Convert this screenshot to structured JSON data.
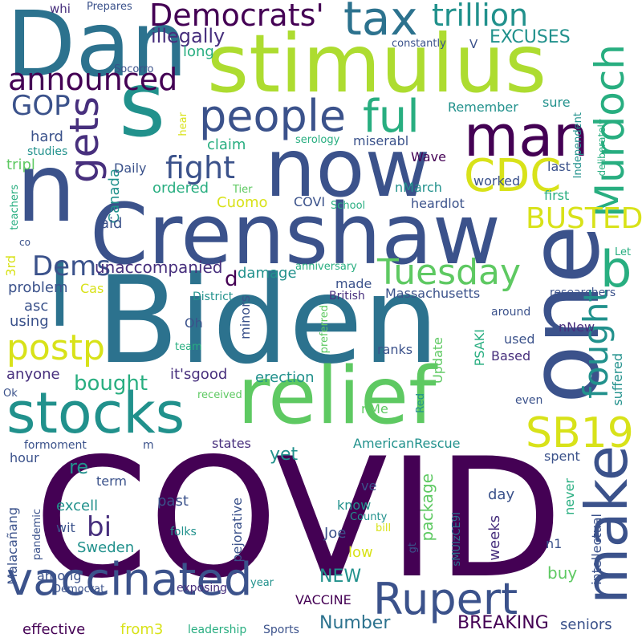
{
  "palette": {
    "dark_purple": "#440154",
    "indigo": "#472f7d",
    "slate_blue": "#3b528b",
    "steel_blue": "#2c728e",
    "teal": "#21918c",
    "sea_green": "#28ae80",
    "green": "#5ec962",
    "lime": "#addc30",
    "yellow": "#d8e219"
  },
  "words": [
    {
      "text": "COVID",
      "color": "#440154"
    },
    {
      "text": "Biden",
      "color": "#2c728e"
    },
    {
      "text": "Crenshaw",
      "color": "#3b528b"
    },
    {
      "text": "stimulus",
      "color": "#addc30"
    },
    {
      "text": "relief",
      "color": "#5ec962"
    },
    {
      "text": "one",
      "color": "#3b528b"
    },
    {
      "text": "Dan",
      "color": "#2c728e"
    },
    {
      "text": "now",
      "color": "#3b528b"
    },
    {
      "text": "s",
      "color": "#21918c"
    },
    {
      "text": "n",
      "color": "#3b528b"
    },
    {
      "text": "stocks",
      "color": "#21918c"
    },
    {
      "text": "make",
      "color": "#3b528b"
    },
    {
      "text": "l",
      "color": "#2c728e"
    },
    {
      "text": "man",
      "color": "#440154"
    },
    {
      "text": "vaccinated",
      "color": "#3b528b"
    },
    {
      "text": "Rupert",
      "color": "#3b528b"
    },
    {
      "text": "Murdoch",
      "color": "#28ae80"
    },
    {
      "text": "tax",
      "color": "#2c728e"
    },
    {
      "text": "people",
      "color": "#3b528b"
    },
    {
      "text": "b",
      "color": "#28ae80"
    },
    {
      "text": "gets",
      "color": "#472f7d"
    },
    {
      "text": "CDC",
      "color": "#d8e219"
    },
    {
      "text": "SB19",
      "color": "#d8e219"
    },
    {
      "text": "ful",
      "color": "#28ae80"
    },
    {
      "text": "Tuesday",
      "color": "#5ec962"
    },
    {
      "text": "postp",
      "color": "#d8e219"
    },
    {
      "text": "announced",
      "color": "#440154"
    },
    {
      "text": "Democrats'",
      "color": "#440154"
    },
    {
      "text": "trillion",
      "color": "#21918c"
    },
    {
      "text": "fight",
      "color": "#3b528b"
    },
    {
      "text": "BUSTED",
      "color": "#d8e219"
    },
    {
      "text": "fought",
      "color": "#21918c"
    },
    {
      "text": "Dems",
      "color": "#3b528b"
    },
    {
      "text": "GOP",
      "color": "#3b528b"
    },
    {
      "text": "bi",
      "color": "#472f7d"
    },
    {
      "text": "illegally",
      "color": "#472f7d"
    },
    {
      "text": "EXCUSES",
      "color": "#21918c"
    },
    {
      "text": "long",
      "color": "#28ae80"
    },
    {
      "text": "whi",
      "color": "#472f7d"
    },
    {
      "text": "Prepares",
      "color": "#3b528b"
    },
    {
      "text": "constantly",
      "color": "#3b528b"
    },
    {
      "text": "V",
      "color": "#3b528b"
    },
    {
      "text": "Socorro",
      "color": "#3b528b"
    },
    {
      "text": "Canada",
      "color": "#21918c"
    },
    {
      "text": "hard",
      "color": "#3b528b"
    },
    {
      "text": "studies",
      "color": "#21918c"
    },
    {
      "text": "tripl",
      "color": "#5ec962"
    },
    {
      "text": "co",
      "color": "#3b528b"
    },
    {
      "text": "teachers",
      "color": "#28ae80"
    },
    {
      "text": "3rd",
      "color": "#d8e219"
    },
    {
      "text": "Cas",
      "color": "#d8e219"
    },
    {
      "text": "problem",
      "color": "#3b528b"
    },
    {
      "text": "using",
      "color": "#3b528b"
    },
    {
      "text": "asc",
      "color": "#3b528b"
    },
    {
      "text": "anyone",
      "color": "#472f7d"
    },
    {
      "text": "Ok",
      "color": "#3b528b"
    },
    {
      "text": "bought",
      "color": "#28ae80"
    },
    {
      "text": "unaccompanied",
      "color": "#472f7d"
    },
    {
      "text": "laid",
      "color": "#3b528b"
    },
    {
      "text": "ordered",
      "color": "#28ae80"
    },
    {
      "text": "claim",
      "color": "#28ae80"
    },
    {
      "text": "Daily",
      "color": "#3b528b"
    },
    {
      "text": "hear",
      "color": "#d8e219"
    },
    {
      "text": "Cuomo",
      "color": "#d8e219"
    },
    {
      "text": "COVI",
      "color": "#3b528b"
    },
    {
      "text": "School",
      "color": "#28ae80"
    },
    {
      "text": "Tier",
      "color": "#5ec962"
    },
    {
      "text": "serology",
      "color": "#28ae80"
    },
    {
      "text": "miserabl",
      "color": "#3b528b"
    },
    {
      "text": "Wave",
      "color": "#440154"
    },
    {
      "text": "nMarch",
      "color": "#21918c"
    },
    {
      "text": "heardlot",
      "color": "#3b528b"
    },
    {
      "text": "worked",
      "color": "#3b528b"
    },
    {
      "text": "last",
      "color": "#3b528b"
    },
    {
      "text": "first",
      "color": "#28ae80"
    },
    {
      "text": "Remember",
      "color": "#21918c"
    },
    {
      "text": "sure",
      "color": "#21918c"
    },
    {
      "text": "Independent",
      "color": "#21918c"
    },
    {
      "text": "deliberately",
      "color": "#28ae80"
    },
    {
      "text": "Let",
      "color": "#28ae80"
    },
    {
      "text": "researchers",
      "color": "#3b528b"
    },
    {
      "text": "around",
      "color": "#3b528b"
    },
    {
      "text": "nNew",
      "color": "#472f7d"
    },
    {
      "text": "used",
      "color": "#3b528b"
    },
    {
      "text": "Based",
      "color": "#472f7d"
    },
    {
      "text": "PSAKI",
      "color": "#28ae80"
    },
    {
      "text": "Update",
      "color": "#5ec962"
    },
    {
      "text": "suffered",
      "color": "#21918c"
    },
    {
      "text": "even",
      "color": "#3b528b"
    },
    {
      "text": "Red",
      "color": "#21918c"
    },
    {
      "text": "nMe",
      "color": "#5ec962"
    },
    {
      "text": "d",
      "color": "#440154"
    },
    {
      "text": "damage",
      "color": "#21918c"
    },
    {
      "text": "anniversary",
      "color": "#28ae80"
    },
    {
      "text": "made",
      "color": "#3b528b"
    },
    {
      "text": "Massachusetts",
      "color": "#3b528b"
    },
    {
      "text": "British",
      "color": "#472f7d"
    },
    {
      "text": "District",
      "color": "#21918c"
    },
    {
      "text": "Oh",
      "color": "#3b528b"
    },
    {
      "text": "minors",
      "color": "#3b528b"
    },
    {
      "text": "preferred",
      "color": "#5ec962"
    },
    {
      "text": "ranks",
      "color": "#3b528b"
    },
    {
      "text": "team",
      "color": "#28ae80"
    },
    {
      "text": "it'sgood",
      "color": "#472f7d"
    },
    {
      "text": "erection",
      "color": "#21918c"
    },
    {
      "text": "received",
      "color": "#5ec962"
    },
    {
      "text": "formoment",
      "color": "#3b528b"
    },
    {
      "text": "m",
      "color": "#3b528b"
    },
    {
      "text": "states",
      "color": "#472f7d"
    },
    {
      "text": "AmericanRescue",
      "color": "#21918c"
    },
    {
      "text": "spent",
      "color": "#3b528b"
    },
    {
      "text": "yet",
      "color": "#21918c"
    },
    {
      "text": "hour",
      "color": "#3b528b"
    },
    {
      "text": "re",
      "color": "#21918c"
    },
    {
      "text": "term",
      "color": "#3b528b"
    },
    {
      "text": "excell",
      "color": "#21918c"
    },
    {
      "text": "past",
      "color": "#3b528b"
    },
    {
      "text": "pejorative",
      "color": "#3b528b"
    },
    {
      "text": "package",
      "color": "#5ec962"
    },
    {
      "text": "day",
      "color": "#3b528b"
    },
    {
      "text": "never",
      "color": "#28ae80"
    },
    {
      "text": "n1",
      "color": "#3b528b"
    },
    {
      "text": "ve",
      "color": "#3b528b"
    },
    {
      "text": "know",
      "color": "#21918c"
    },
    {
      "text": "County",
      "color": "#21918c"
    },
    {
      "text": "bill",
      "color": "#d8e219"
    },
    {
      "text": "weeks",
      "color": "#472f7d"
    },
    {
      "text": "Joe",
      "color": "#3b528b"
    },
    {
      "text": "low",
      "color": "#d8e219"
    },
    {
      "text": "gt",
      "color": "#3b528b"
    },
    {
      "text": "sMUIzCE9I",
      "color": "#2c728e"
    },
    {
      "text": "intellectual",
      "color": "#3b528b"
    },
    {
      "text": "buy",
      "color": "#5ec962"
    },
    {
      "text": "wit",
      "color": "#3b528b"
    },
    {
      "text": "pandemic",
      "color": "#3b528b"
    },
    {
      "text": "Malacañang",
      "color": "#3b528b"
    },
    {
      "text": "Sweden",
      "color": "#21918c"
    },
    {
      "text": "folks",
      "color": "#21918c"
    },
    {
      "text": "among",
      "color": "#3b528b"
    },
    {
      "text": "Democrat",
      "color": "#3b528b"
    },
    {
      "text": "exposing",
      "color": "#472f7d"
    },
    {
      "text": "year",
      "color": "#21918c"
    },
    {
      "text": "NEW",
      "color": "#21918c"
    },
    {
      "text": "VACCINE",
      "color": "#440154"
    },
    {
      "text": "Number",
      "color": "#2c728e"
    },
    {
      "text": "BREAKING",
      "color": "#440154"
    },
    {
      "text": "seniors",
      "color": "#3b528b"
    },
    {
      "text": "effective",
      "color": "#440154"
    },
    {
      "text": "from3",
      "color": "#d8e219"
    },
    {
      "text": "leadership",
      "color": "#28ae80"
    },
    {
      "text": "Sports",
      "color": "#3b528b"
    }
  ]
}
